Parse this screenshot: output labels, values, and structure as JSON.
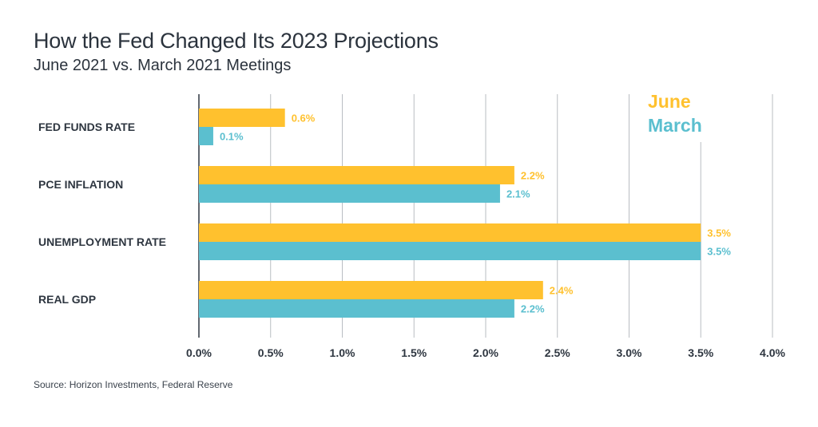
{
  "header": {
    "title": "How the Fed Changed Its 2023 Projections",
    "subtitle": "June 2021 vs. March 2021 Meetings"
  },
  "footer": {
    "source": "Source: Horizon Investments, Federal Reserve"
  },
  "colors": {
    "june": "#ffc12e",
    "march": "#5bbfcf",
    "grid": "#b9bdc2",
    "axis": "#2e3640"
  },
  "chart_data": {
    "type": "bar",
    "orientation": "horizontal",
    "title": "How the Fed Changed Its 2023 Projections",
    "subtitle": "June 2021 vs. March 2021 Meetings",
    "categories": [
      "FED FUNDS RATE",
      "PCE INFLATION",
      "UNEMPLOYMENT RATE",
      "REAL GDP"
    ],
    "series": [
      {
        "name": "June",
        "values": [
          0.6,
          2.2,
          3.5,
          2.4
        ],
        "labels": [
          "0.6%",
          "2.2%",
          "3.5%",
          "2.4%"
        ]
      },
      {
        "name": "March",
        "values": [
          0.1,
          2.1,
          3.5,
          2.2
        ],
        "labels": [
          "0.1%",
          "2.1%",
          "3.5%",
          "2.2%"
        ]
      }
    ],
    "xlim": [
      0,
      4.0
    ],
    "xticks": [
      "0.0%",
      "0.5%",
      "1.0%",
      "1.5%",
      "2.0%",
      "2.5%",
      "3.0%",
      "3.5%",
      "4.0%"
    ],
    "grid": true,
    "legend_position": "top-right",
    "source": "Source: Horizon Investments, Federal Reserve"
  }
}
